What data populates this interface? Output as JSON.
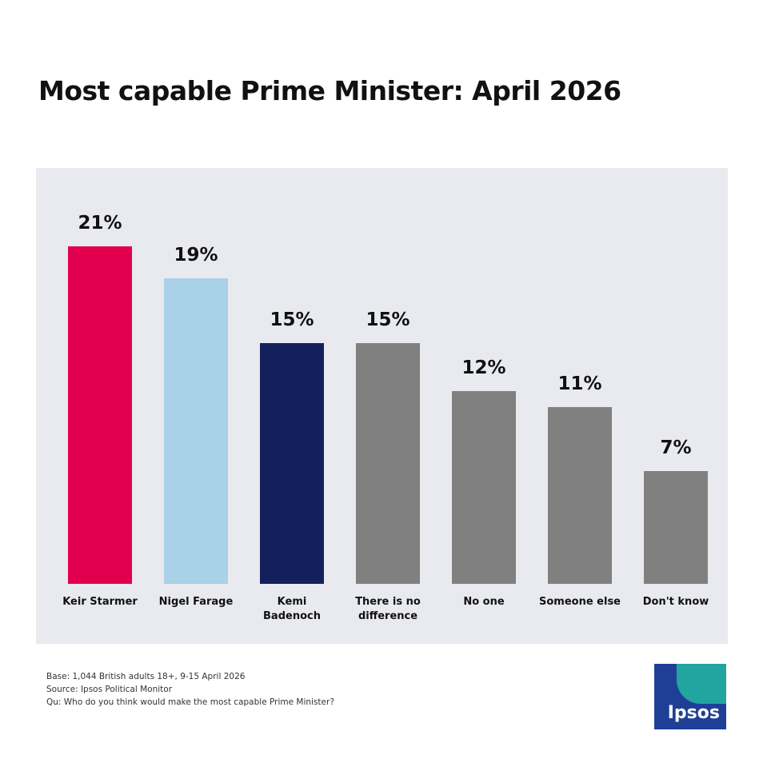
{
  "chart_data": {
    "type": "bar",
    "title": "Most capable Prime Minister: April 2026",
    "categories": [
      "Keir Starmer",
      "Nigel Farage",
      "Kemi Badenoch",
      "There is no difference",
      "No one",
      "Someone else",
      "Don't know"
    ],
    "values": [
      21,
      19,
      15,
      15,
      12,
      11,
      7
    ],
    "value_labels": [
      "21%",
      "19%",
      "15%",
      "15%",
      "12%",
      "11%",
      "7%"
    ],
    "colors": [
      "#e2004e",
      "#a9d1e7",
      "#14205c",
      "#808080",
      "#808080",
      "#808080",
      "#808080"
    ],
    "notes": [
      "Base: 1,044 British adults 18+, 9-15 April 2026",
      "Source: Ipsos Political Monitor",
      "Qu: Who do you think would make the most capable Prime Minister?"
    ],
    "logo": "Ipsos"
  }
}
